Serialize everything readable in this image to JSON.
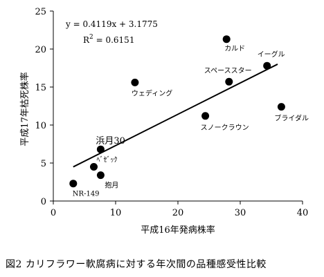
{
  "caption": "図2 カリフラワー軟腐病に対する年次間の品種感受性比較",
  "chart_data": {
    "type": "scatter",
    "xlabel": "平成16年発病株率",
    "ylabel": "平成17年枯死株率",
    "xlim": [
      0,
      40
    ],
    "ylim": [
      0,
      25
    ],
    "xticks": [
      0,
      10,
      20,
      30,
      40
    ],
    "yticks": [
      0,
      5,
      10,
      15,
      20,
      25
    ],
    "grid": false,
    "points": [
      {
        "label": "NR-149",
        "x": 3.2,
        "y": 2.3
      },
      {
        "label": "ﾍﾞｾﾞｯｸ",
        "x": 6.5,
        "y": 4.5
      },
      {
        "label": "浜月30",
        "x": 7.6,
        "y": 6.8
      },
      {
        "label": "抱月",
        "x": 7.6,
        "y": 3.4
      },
      {
        "label": "ウェディング",
        "x": 13.1,
        "y": 15.6
      },
      {
        "label": "スノークラウン",
        "x": 24.4,
        "y": 11.2
      },
      {
        "label": "カルド",
        "x": 27.8,
        "y": 21.3
      },
      {
        "label": "スペーススター",
        "x": 28.2,
        "y": 15.7
      },
      {
        "label": "イーグル",
        "x": 34.3,
        "y": 17.8
      },
      {
        "label": "ブライダル",
        "x": 36.6,
        "y": 12.4
      }
    ],
    "trendline": {
      "slope": 0.4119,
      "intercept": 3.1775,
      "x_range": [
        3.2,
        36.0
      ]
    },
    "annotation": {
      "equation": "y = 0.4119x + 3.1775",
      "r2_label": "R",
      "r2_sup": "2",
      "r2_value": " = 0.6151"
    },
    "colors": {
      "points": "#000000",
      "line": "#000000",
      "axes": "#000000"
    }
  }
}
